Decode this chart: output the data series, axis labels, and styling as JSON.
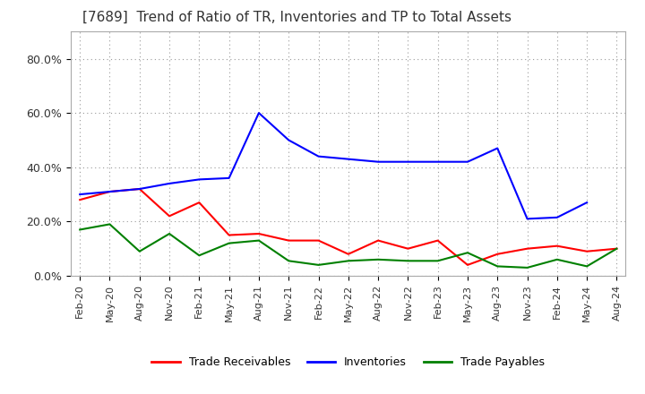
{
  "title": "[7689]  Trend of Ratio of TR, Inventories and TP to Total Assets",
  "x_labels": [
    "Feb-20",
    "May-20",
    "Aug-20",
    "Nov-20",
    "Feb-21",
    "May-21",
    "Aug-21",
    "Nov-21",
    "Feb-22",
    "May-22",
    "Aug-22",
    "Nov-22",
    "Feb-23",
    "May-23",
    "Aug-23",
    "Nov-23",
    "Feb-24",
    "May-24",
    "Aug-24"
  ],
  "trade_receivables": [
    0.28,
    0.31,
    0.32,
    0.22,
    0.27,
    0.15,
    0.155,
    0.13,
    0.13,
    0.08,
    0.13,
    0.1,
    0.13,
    0.04,
    0.08,
    0.1,
    0.11,
    0.09,
    0.1
  ],
  "inventories": [
    0.3,
    0.31,
    0.32,
    0.34,
    0.355,
    0.36,
    0.6,
    0.5,
    0.44,
    0.43,
    0.42,
    0.42,
    0.42,
    0.42,
    0.47,
    0.21,
    0.215,
    0.27,
    null
  ],
  "trade_payables": [
    0.17,
    0.19,
    0.09,
    0.155,
    0.075,
    0.12,
    0.13,
    0.055,
    0.04,
    0.055,
    0.06,
    0.055,
    0.055,
    0.085,
    0.035,
    0.03,
    0.06,
    0.035,
    0.1
  ],
  "tr_color": "#ff0000",
  "inv_color": "#0000ff",
  "tp_color": "#008000",
  "ylim": [
    0.0,
    0.9
  ],
  "yticks": [
    0.0,
    0.2,
    0.4,
    0.6,
    0.8
  ],
  "ytick_labels": [
    "0.0%",
    "20.0%",
    "40.0%",
    "60.0%",
    "80.0%"
  ],
  "background_color": "#ffffff",
  "grid_color": "#999999",
  "legend_labels": [
    "Trade Receivables",
    "Inventories",
    "Trade Payables"
  ],
  "title_fontsize": 11,
  "axis_fontsize": 8,
  "legend_fontsize": 9
}
